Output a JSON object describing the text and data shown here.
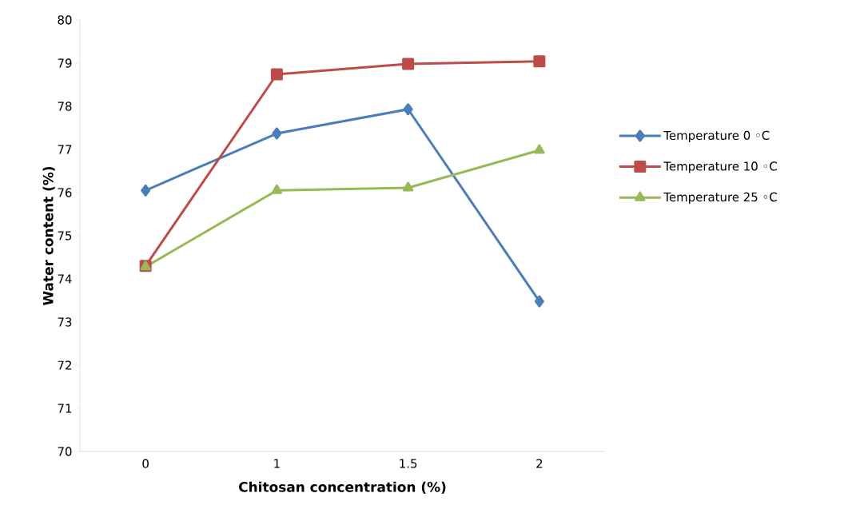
{
  "chart_data": {
    "type": "line",
    "xlabel": "Chitosan concentration (%)",
    "ylabel": "Water content (%)",
    "categories": [
      "0",
      "1",
      "1.5",
      "2"
    ],
    "series": [
      {
        "name": "Temperature 0 ◦C",
        "color": "#4a7ebb",
        "marker": "diamond",
        "values": [
          76.05,
          77.37,
          77.93,
          73.48
        ]
      },
      {
        "name": "Temperature 10 ◦C",
        "color": "#be4b48",
        "marker": "square",
        "values": [
          74.3,
          78.74,
          78.98,
          79.04
        ]
      },
      {
        "name": "Temperature 25 ◦C",
        "color": "#98b954",
        "marker": "triangle",
        "values": [
          74.28,
          76.05,
          76.11,
          76.98
        ]
      }
    ],
    "ylim": [
      70,
      80
    ],
    "yticks": [
      70,
      71,
      72,
      73,
      74,
      75,
      76,
      77,
      78,
      79,
      80
    ],
    "grid": false,
    "legend": "right",
    "line_style": "solid"
  }
}
